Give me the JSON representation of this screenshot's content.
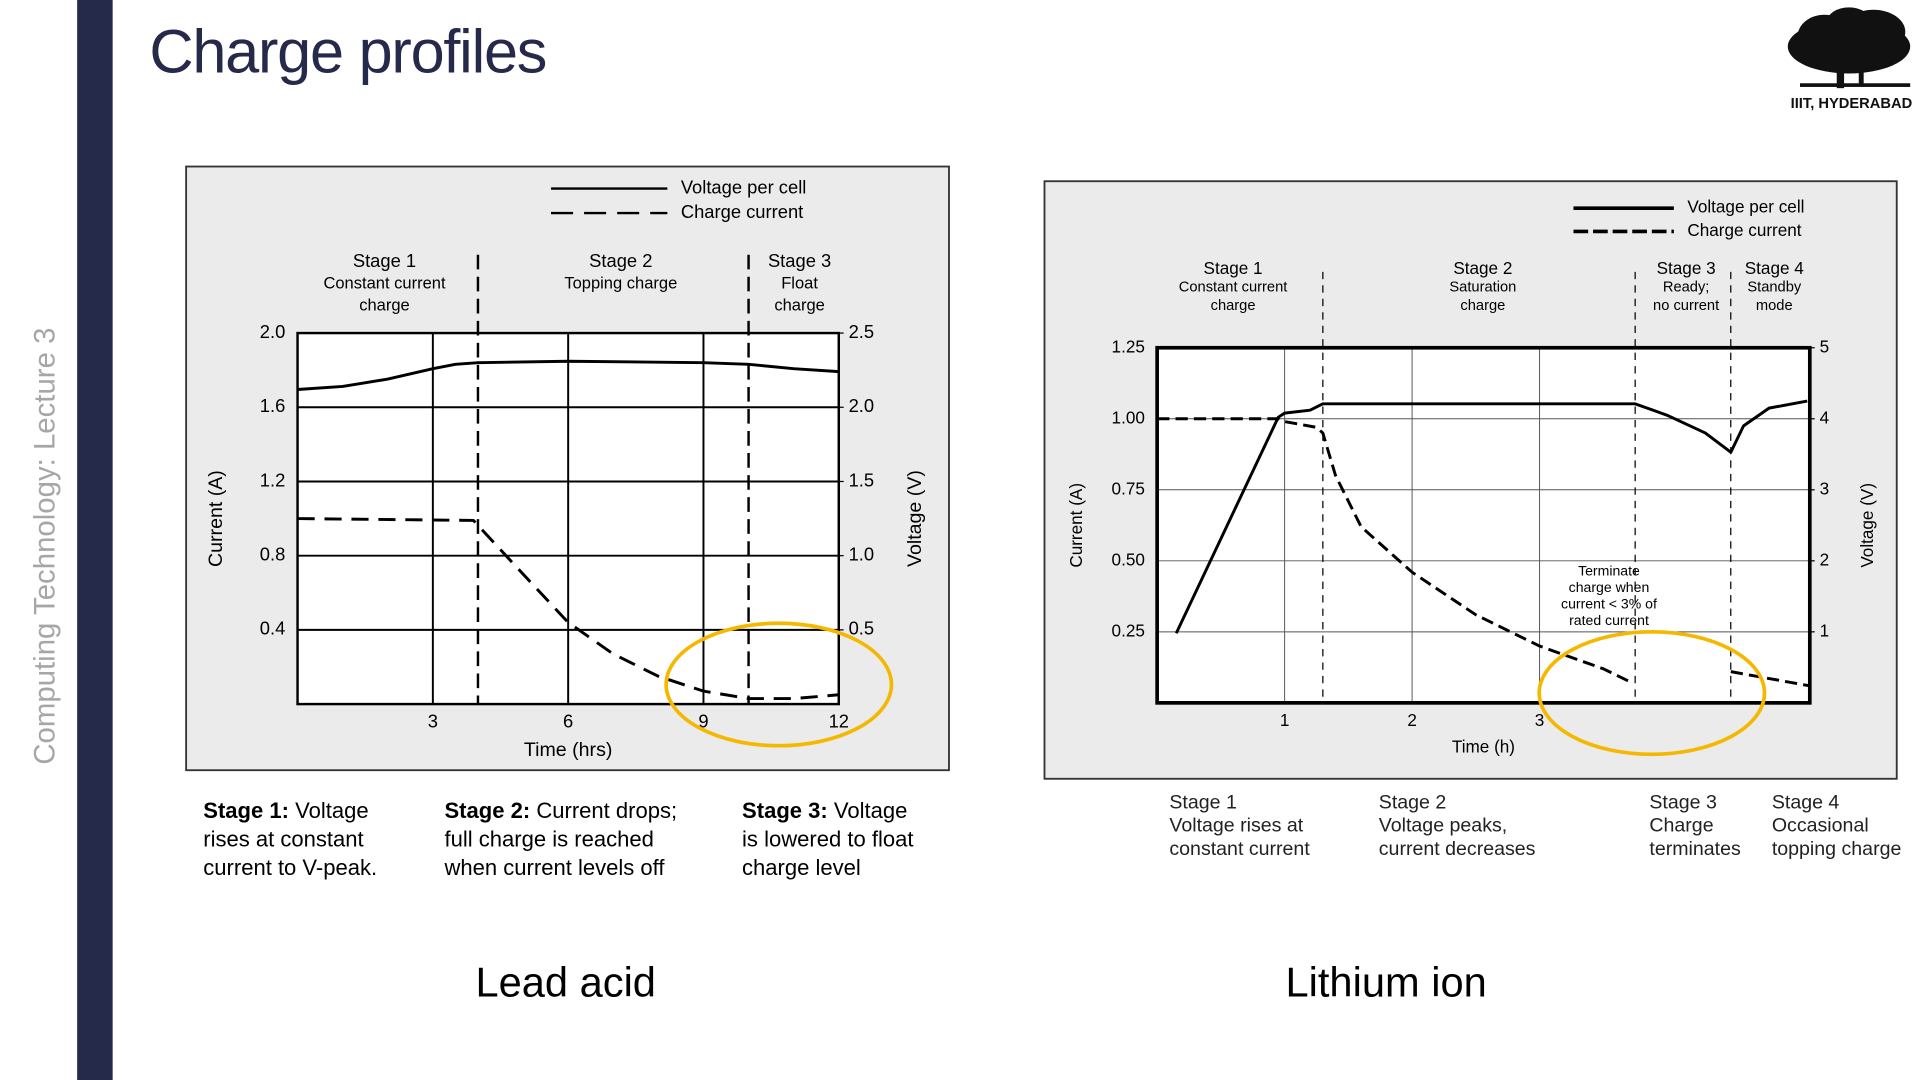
{
  "slide": {
    "title": "Charge profiles",
    "sidebar": "Computing Technology: Lecture 3",
    "logo_text": "IIIT, HYDERABAD"
  },
  "chart_data": [
    {
      "type": "line",
      "caption": "Lead acid",
      "x_label": "Time (hrs)",
      "y_label": "Current (A)",
      "y2_label": "Voltage (V)",
      "xlim": [
        0,
        12
      ],
      "xticks": [
        3,
        6,
        9,
        12
      ],
      "ylim": [
        0,
        2
      ],
      "yticks": [
        0.4,
        0.8,
        1.2,
        1.6,
        {
          "value": 2,
          "label": "2.0"
        }
      ],
      "y2lim": [
        0,
        2.5
      ],
      "y2ticks": [
        0.5,
        {
          "value": 1,
          "label": "1.0"
        },
        1.5,
        {
          "value": 2,
          "label": "2.0"
        },
        2.5
      ],
      "grid": true,
      "series": [
        {
          "name": "Voltage per cell",
          "color": "#000000",
          "axis": "y2",
          "dashed": false,
          "x": [
            0,
            1,
            2,
            3,
            3.5,
            4,
            6,
            9,
            10,
            11,
            12
          ],
          "values": [
            2.12,
            2.14,
            2.19,
            2.26,
            2.29,
            2.3,
            2.31,
            2.3,
            2.29,
            2.26,
            2.24
          ]
        },
        {
          "name": "Charge current",
          "color": "#000000",
          "axis": "y",
          "dashed": true,
          "x": [
            0,
            3.9,
            5,
            6,
            7,
            8,
            9,
            10,
            11,
            12
          ],
          "values": [
            1.0,
            0.99,
            0.7,
            0.44,
            0.27,
            0.15,
            0.07,
            0.03,
            0.03,
            0.05
          ]
        }
      ],
      "stage_boundaries": [
        4,
        10
      ],
      "stages": [
        {
          "name": "Stage 1",
          "lines": [
            "Constant current",
            "charge"
          ]
        },
        {
          "name": "Stage 2",
          "lines": [
            "Topping charge"
          ]
        },
        {
          "name": "Stage 3",
          "lines": [
            "Float",
            "charge"
          ]
        }
      ],
      "descriptions": [
        {
          "heading": "Stage 1:",
          "lines": [
            "Voltage",
            "rises at constant",
            "current to V-peak."
          ]
        },
        {
          "heading": "Stage 2:",
          "lines": [
            "Current drops;",
            "full charge is reached",
            "when current levels off"
          ]
        },
        {
          "heading": "Stage 3:",
          "lines": [
            "Voltage",
            "is lowered to float",
            "charge level"
          ]
        }
      ]
    },
    {
      "type": "line",
      "caption": "Lithium ion",
      "x_label": "Time (h)",
      "y_label": "Current (A)",
      "y2_label": "Voltage (V)",
      "xlim": [
        0,
        5.12
      ],
      "xticks": [
        1,
        2,
        3
      ],
      "ylim": [
        0,
        1.25
      ],
      "yticks": [
        0.25,
        {
          "value": 0.5,
          "label": "0.50"
        },
        0.75,
        {
          "value": 1,
          "label": "1.00"
        },
        1.25
      ],
      "y2lim": [
        0,
        5
      ],
      "y2ticks": [
        1,
        2,
        3,
        4,
        5
      ],
      "grid": true,
      "series": [
        {
          "name": "Voltage per cell",
          "color": "#000000",
          "axis": "y2",
          "dashed": false,
          "x": [
            0.15,
            0.95,
            1.0,
            1.2,
            1.3,
            3.75,
            4.0,
            4.3,
            4.5,
            4.6,
            4.8,
            5.1
          ],
          "values": [
            0.98,
            4.02,
            4.08,
            4.12,
            4.21,
            4.21,
            4.05,
            3.8,
            3.53,
            3.9,
            4.15,
            4.25
          ]
        },
        {
          "name": "Charge current",
          "color": "#000000",
          "axis": "y",
          "dashed": true,
          "x": [
            0,
            0.95,
            1.0,
            1.25,
            1.3,
            1.4,
            1.6,
            2.0,
            2.5,
            3.0,
            3.5,
            3.73,
            4.1,
            4.5,
            5.12
          ],
          "values": [
            1.0,
            1.0,
            0.99,
            0.97,
            0.95,
            0.8,
            0.62,
            0.46,
            0.31,
            0.2,
            0.12,
            0.07,
            null,
            0.11,
            0.06
          ]
        }
      ],
      "stage_boundaries": [
        1.3,
        3.75,
        4.5
      ],
      "stages": [
        {
          "name": "Stage 1",
          "lines": [
            "Constant current",
            "charge"
          ]
        },
        {
          "name": "Stage 2",
          "lines": [
            "Saturation",
            "charge"
          ]
        },
        {
          "name": "Stage 3",
          "lines": [
            "Ready;",
            "no current"
          ]
        },
        {
          "name": "Stage 4",
          "lines": [
            "Standby",
            "mode"
          ]
        }
      ],
      "annotation": [
        "Terminate",
        "charge when",
        "current < 3% of",
        "rated current"
      ],
      "descriptions": [
        {
          "heading": "Stage 1",
          "lines": [
            "Voltage rises at",
            "constant current"
          ]
        },
        {
          "heading": "Stage 2",
          "lines": [
            "Voltage peaks,",
            "current decreases"
          ]
        },
        {
          "heading": "Stage 3",
          "lines": [
            "Charge",
            "terminates"
          ]
        },
        {
          "heading": "Stage 4",
          "lines": [
            "Occasional",
            "topping charge"
          ]
        }
      ]
    }
  ]
}
